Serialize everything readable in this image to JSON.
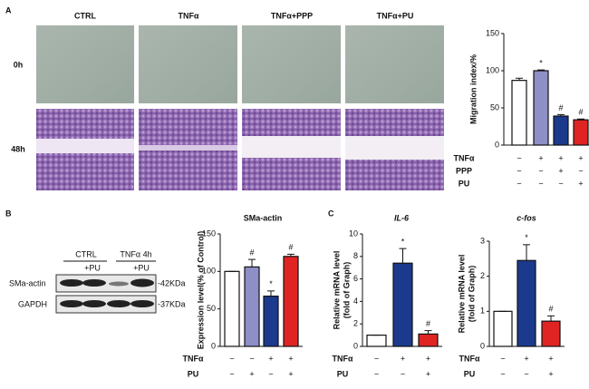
{
  "panels": {
    "A": {
      "letter": "A",
      "columns": [
        "CTRL",
        "TNFα",
        "TNFα+PPP",
        "TNFα+PU"
      ],
      "rows": [
        "0h",
        "48h"
      ]
    },
    "B": {
      "letter": "B",
      "groups": [
        "CTRL",
        "TNFα 4h"
      ],
      "sub": [
        "+PU",
        "+PU"
      ],
      "bands": [
        "SMa-actin",
        "GAPDH"
      ],
      "sizes": [
        "-42KDa",
        "-37KDa"
      ]
    },
    "C": {
      "letter": "C"
    }
  },
  "chart_data": [
    {
      "type": "bar",
      "ylabel": [
        "Migration index/%"
      ],
      "values": [
        87,
        100,
        39,
        34
      ],
      "errors": [
        3,
        1,
        2,
        1
      ],
      "colors": [
        "#ffffff",
        "#8d8fc6",
        "#1b3a8e",
        "#e02424"
      ],
      "annotations": [
        null,
        "*",
        "#",
        "#"
      ],
      "ylim": [
        0,
        150
      ],
      "yticks": [
        0,
        50,
        100,
        150
      ],
      "treatments": [
        {
          "name": "TNFα",
          "marks": [
            "−",
            "+",
            "+",
            "+"
          ]
        },
        {
          "name": "PPP",
          "marks": [
            "−",
            "−",
            "+",
            "−"
          ]
        },
        {
          "name": "PU",
          "marks": [
            "−",
            "−",
            "−",
            "+"
          ]
        }
      ]
    },
    {
      "type": "bar",
      "title": "SMa-actin",
      "ylabel": [
        "Expression level(% of Control)"
      ],
      "values": [
        100,
        106,
        67,
        120
      ],
      "errors": [
        0,
        10,
        7,
        3
      ],
      "colors": [
        "#ffffff",
        "#8d8fc6",
        "#1b3a8e",
        "#e02424"
      ],
      "annotations": [
        null,
        "#",
        "*",
        "#"
      ],
      "ylim": [
        0,
        150
      ],
      "yticks": [
        0,
        50,
        100,
        150
      ],
      "treatments": [
        {
          "name": "TNFα",
          "marks": [
            "−",
            "−",
            "+",
            "+"
          ]
        },
        {
          "name": "PU",
          "marks": [
            "−",
            "+",
            "−",
            "+"
          ]
        }
      ]
    },
    {
      "type": "bar",
      "title": "IL-6",
      "ylabel": [
        "Relative mRNA level",
        "(fold of Graph)"
      ],
      "values": [
        1,
        7.4,
        1.1
      ],
      "errors": [
        0,
        1.3,
        0.3
      ],
      "colors": [
        "#ffffff",
        "#1b3a8e",
        "#e02424"
      ],
      "annotations": [
        null,
        "*",
        "#"
      ],
      "ylim": [
        0,
        10
      ],
      "yticks": [
        0,
        2,
        4,
        6,
        8,
        10
      ],
      "treatments": [
        {
          "name": "TNFα",
          "marks": [
            "−",
            "+",
            "+"
          ]
        },
        {
          "name": "PU",
          "marks": [
            "−",
            "−",
            "+"
          ]
        }
      ]
    },
    {
      "type": "bar",
      "title": "c-fos",
      "ylabel": [
        "Relative mRNA level",
        "(fold of Graph)"
      ],
      "values": [
        1,
        2.45,
        0.72
      ],
      "errors": [
        0,
        0.45,
        0.15
      ],
      "colors": [
        "#ffffff",
        "#1b3a8e",
        "#e02424"
      ],
      "annotations": [
        null,
        "*",
        "#"
      ],
      "ylim": [
        0,
        3
      ],
      "yticks": [
        0,
        1,
        2,
        3
      ],
      "treatments": [
        {
          "name": "TNFα",
          "marks": [
            "−",
            "+",
            "+"
          ]
        },
        {
          "name": "PU",
          "marks": [
            "−",
            "−",
            "+"
          ]
        }
      ]
    }
  ]
}
